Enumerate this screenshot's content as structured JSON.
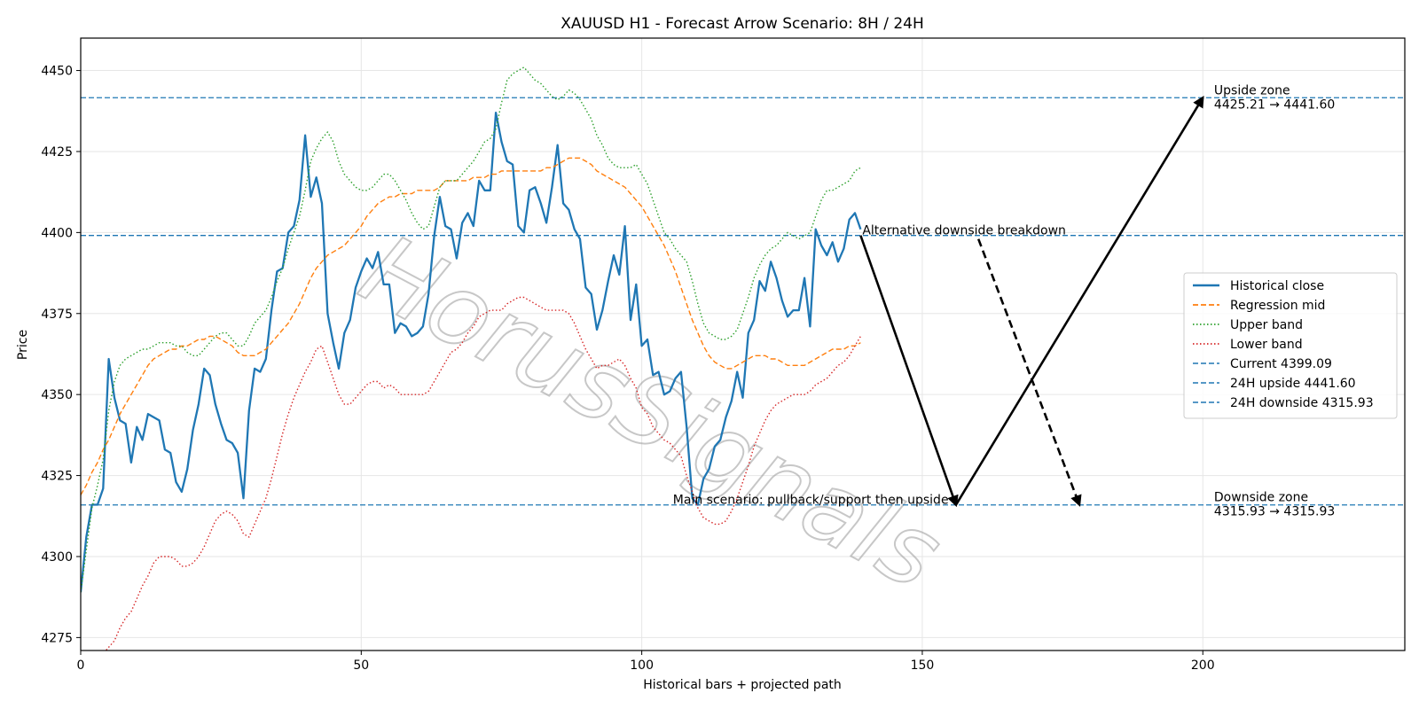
{
  "chart_data": {
    "type": "line",
    "title": "XAUUSD H1 - Forecast Arrow Scenario: 8H / 24H",
    "xlabel": "Historical bars + projected path",
    "ylabel": "Price",
    "xlim": [
      0,
      236
    ],
    "ylim": [
      4271,
      4460
    ],
    "xticks": [
      0,
      50,
      100,
      150,
      200
    ],
    "yticks": [
      4275,
      4300,
      4325,
      4350,
      4375,
      4400,
      4425,
      4450
    ],
    "grid": true,
    "legend_position": "center-right",
    "watermark": "HorusSignals",
    "series": [
      {
        "name": "Historical close",
        "style": "solid",
        "color": "#1f77b4",
        "values": [
          4289,
          4306,
          4316,
          4316,
          4321,
          4361,
          4349,
          4342,
          4341,
          4329,
          4340,
          4336,
          4344,
          4343,
          4342,
          4333,
          4332,
          4323,
          4320,
          4327,
          4339,
          4347,
          4358,
          4356,
          4347,
          4341,
          4336,
          4335,
          4332,
          4318,
          4345,
          4358,
          4357,
          4361,
          4376,
          4388,
          4389,
          4400,
          4402,
          4410,
          4430,
          4411,
          4417,
          4409,
          4375,
          4366,
          4358,
          4369,
          4373,
          4383,
          4388,
          4392,
          4389,
          4394,
          4384,
          4384,
          4369,
          4372,
          4371,
          4368,
          4369,
          4371,
          4381,
          4399,
          4411,
          4402,
          4401,
          4392,
          4403,
          4406,
          4402,
          4416,
          4413,
          4413,
          4437,
          4428,
          4422,
          4421,
          4402,
          4400,
          4413,
          4414,
          4409,
          4403,
          4414,
          4427,
          4409,
          4407,
          4401,
          4398,
          4383,
          4381,
          4370,
          4376,
          4385,
          4393,
          4387,
          4402,
          4373,
          4384,
          4365,
          4367,
          4356,
          4357,
          4350,
          4351,
          4355,
          4357,
          4340,
          4318,
          4316,
          4324,
          4327,
          4334,
          4336,
          4343,
          4348,
          4357,
          4349,
          4369,
          4373,
          4385,
          4382,
          4391,
          4386,
          4379,
          4374,
          4376,
          4376,
          4386,
          4371,
          4401,
          4396,
          4393,
          4397,
          4391,
          4395,
          4404,
          4406,
          4401
        ]
      },
      {
        "name": "Regression mid",
        "style": "dashed",
        "color": "#ff7f0e",
        "values": [
          4319,
          4322,
          4326,
          4329,
          4333,
          4336,
          4340,
          4344,
          4347,
          4350,
          4353,
          4356,
          4359,
          4361,
          4362,
          4363,
          4364,
          4364,
          4365,
          4365,
          4366,
          4367,
          4367,
          4368,
          4368,
          4367,
          4366,
          4365,
          4363,
          4362,
          4362,
          4362,
          4363,
          4364,
          4366,
          4368,
          4370,
          4372,
          4375,
          4378,
          4382,
          4386,
          4389,
          4391,
          4393,
          4394,
          4395,
          4396,
          4398,
          4400,
          4402,
          4405,
          4407,
          4409,
          4410,
          4411,
          4411,
          4412,
          4412,
          4412,
          4413,
          4413,
          4413,
          4413,
          4414,
          4416,
          4416,
          4416,
          4416,
          4416,
          4417,
          4417,
          4417,
          4418,
          4418,
          4419,
          4419,
          4419,
          4419,
          4419,
          4419,
          4419,
          4419,
          4420,
          4420,
          4421,
          4422,
          4423,
          4423,
          4423,
          4422,
          4421,
          4419,
          4418,
          4417,
          4416,
          4415,
          4414,
          4412,
          4410,
          4408,
          4405,
          4402,
          4399,
          4396,
          4392,
          4388,
          4383,
          4378,
          4373,
          4369,
          4365,
          4362,
          4360,
          4359,
          4358,
          4358,
          4359,
          4360,
          4361,
          4362,
          4362,
          4362,
          4361,
          4361,
          4360,
          4359,
          4359,
          4359,
          4359,
          4360,
          4361,
          4362,
          4363,
          4364,
          4364,
          4364,
          4365,
          4365,
          4366
        ]
      },
      {
        "name": "Upper band",
        "style": "dotted",
        "color": "#2ca02c",
        "values": [
          4289,
          4302,
          4315,
          4322,
          4330,
          4345,
          4354,
          4359,
          4361,
          4362,
          4363,
          4364,
          4364,
          4365,
          4366,
          4366,
          4366,
          4365,
          4365,
          4363,
          4362,
          4362,
          4364,
          4366,
          4368,
          4369,
          4369,
          4367,
          4365,
          4365,
          4368,
          4372,
          4374,
          4376,
          4380,
          4385,
          4389,
          4395,
          4400,
          4405,
          4413,
          4422,
          4426,
          4429,
          4431,
          4428,
          4422,
          4418,
          4416,
          4414,
          4413,
          4413,
          4414,
          4416,
          4418,
          4418,
          4416,
          4413,
          4410,
          4406,
          4403,
          4401,
          4402,
          4408,
          4414,
          4416,
          4416,
          4416,
          4418,
          4420,
          4422,
          4425,
          4428,
          4429,
          4432,
          4440,
          4447,
          4449,
          4450,
          4451,
          4449,
          4447,
          4446,
          4444,
          4442,
          4441,
          4442,
          4444,
          4443,
          4441,
          4438,
          4435,
          4430,
          4427,
          4423,
          4421,
          4420,
          4420,
          4420,
          4421,
          4418,
          4415,
          4410,
          4405,
          4400,
          4398,
          4395,
          4393,
          4391,
          4385,
          4378,
          4372,
          4369,
          4368,
          4367,
          4367,
          4368,
          4370,
          4375,
          4380,
          4386,
          4390,
          4393,
          4395,
          4396,
          4398,
          4400,
          4399,
          4398,
          4399,
          4400,
          4405,
          4410,
          4413,
          4413,
          4414,
          4415,
          4416,
          4419,
          4420
        ]
      },
      {
        "name": "Lower band",
        "style": "dotted",
        "color": "#d62728",
        "values": [
          4262,
          4264,
          4266,
          4268,
          4270,
          4272,
          4274,
          4278,
          4281,
          4283,
          4287,
          4291,
          4294,
          4298,
          4300,
          4300,
          4300,
          4299,
          4297,
          4297,
          4298,
          4300,
          4303,
          4307,
          4311,
          4313,
          4314,
          4313,
          4311,
          4307,
          4306,
          4310,
          4314,
          4318,
          4324,
          4331,
          4338,
          4344,
          4349,
          4353,
          4357,
          4360,
          4364,
          4365,
          4360,
          4355,
          4350,
          4347,
          4347,
          4349,
          4351,
          4353,
          4354,
          4354,
          4352,
          4353,
          4352,
          4350,
          4350,
          4350,
          4350,
          4350,
          4351,
          4354,
          4357,
          4360,
          4363,
          4364,
          4366,
          4369,
          4371,
          4374,
          4375,
          4376,
          4376,
          4376,
          4378,
          4379,
          4380,
          4380,
          4379,
          4378,
          4377,
          4376,
          4376,
          4376,
          4376,
          4375,
          4372,
          4368,
          4364,
          4361,
          4358,
          4359,
          4359,
          4360,
          4361,
          4359,
          4355,
          4352,
          4346,
          4344,
          4340,
          4338,
          4336,
          4335,
          4333,
          4331,
          4325,
          4320,
          4315,
          4312,
          4311,
          4310,
          4310,
          4311,
          4314,
          4318,
          4323,
          4328,
          4334,
          4338,
          4342,
          4345,
          4347,
          4348,
          4349,
          4350,
          4350,
          4350,
          4351,
          4353,
          4354,
          4355,
          4357,
          4359,
          4360,
          4362,
          4365,
          4368
        ]
      }
    ],
    "hlines": [
      {
        "name": "Current 4399.09",
        "value": 4399.09,
        "style": "dashed",
        "color": "#1f77b4"
      },
      {
        "name": "24H upside 4441.60",
        "value": 4441.6,
        "style": "dashed",
        "color": "#1f77b4"
      },
      {
        "name": "24H downside 4315.93",
        "value": 4315.93,
        "style": "dashed",
        "color": "#1f77b4"
      }
    ],
    "arrows": [
      {
        "from": [
          139,
          4399.09
        ],
        "to": [
          156,
          4315.93
        ],
        "style": "solid"
      },
      {
        "from": [
          156,
          4315.93
        ],
        "to": [
          200,
          4441.6
        ],
        "style": "solid"
      },
      {
        "from": [
          160,
          4398
        ],
        "to": [
          178,
          4316
        ],
        "style": "dashed"
      }
    ],
    "annotations": [
      {
        "text": "Alternative downside breakdown",
        "x": 139,
        "y": 4399.09,
        "anchor": "start"
      },
      {
        "text": "Main scenario: pullback/support then upside",
        "x": 155,
        "y": 4315.93,
        "anchor": "end"
      },
      {
        "lines": [
          "Upside zone",
          "4425.21 → 4441.60"
        ],
        "x": 202,
        "y": 4441.6,
        "anchor": "start"
      },
      {
        "lines": [
          "Downside zone",
          "4315.93 → 4315.93"
        ],
        "x": 202,
        "y": 4315.93,
        "anchor": "start"
      }
    ]
  }
}
